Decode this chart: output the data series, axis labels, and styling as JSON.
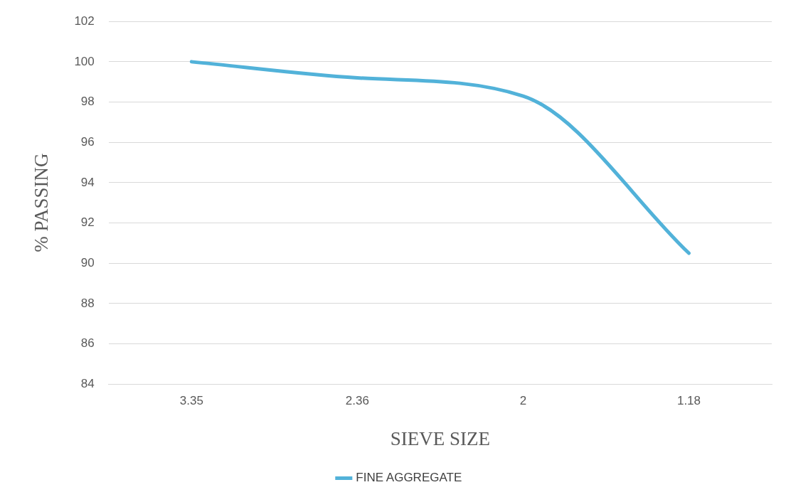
{
  "chart_data": {
    "type": "line",
    "xlabel": "SIEVE SIZE",
    "ylabel": "% PASSING",
    "categories": [
      "3.35",
      "2.36",
      "2",
      "1.18"
    ],
    "series": [
      {
        "name": "FINE AGGREGATE",
        "color": "#52b2d9",
        "values": [
          100,
          99.2,
          98.3,
          90.5
        ]
      }
    ],
    "ylim": [
      84,
      102
    ],
    "yticks": [
      84,
      86,
      88,
      90,
      92,
      94,
      96,
      98,
      100,
      102
    ],
    "grid": "y",
    "legend": "bottom",
    "marker": "none",
    "line_style": "solid"
  }
}
